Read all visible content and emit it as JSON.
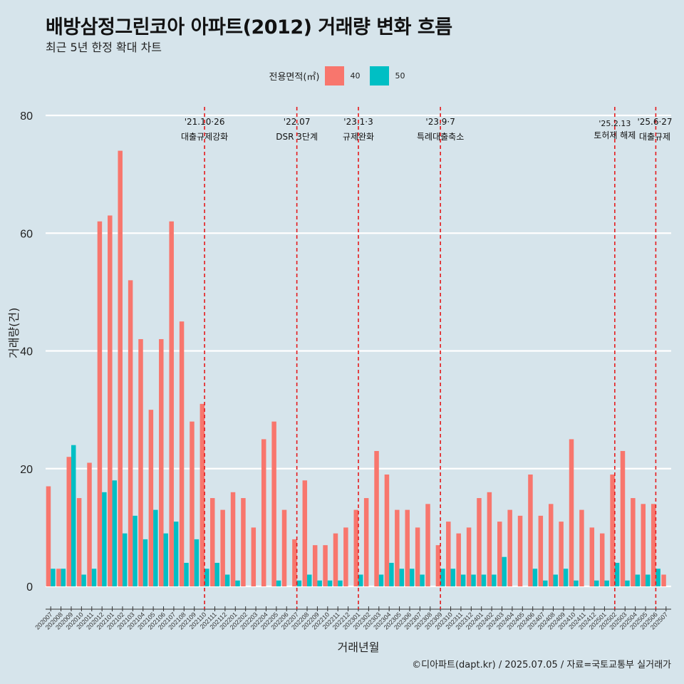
{
  "title": "배방삼정그린코아 아파트(2012) 거래량 변화 흐름",
  "subtitle": "최근 5년 한정 확대 차트",
  "caption": "©디아파트(dapt.kr) / 2025.07.05 / 자료=국토교통부 실거래가",
  "legend": {
    "title": "전용면적(㎡)",
    "items": [
      {
        "label": "40",
        "color": "#f8766d"
      },
      {
        "label": "50",
        "color": "#00bfc4"
      }
    ]
  },
  "chart_data": {
    "type": "bar",
    "title": "배방삼정그린코아 아파트(2012) 거래량 변화 흐름",
    "xlabel": "거래년월",
    "ylabel": "거래량(건)",
    "ylim": [
      0,
      80
    ],
    "yticks": [
      0,
      20,
      40,
      60,
      80
    ],
    "categories": [
      "202007",
      "202008",
      "202009",
      "202010",
      "202011",
      "202012",
      "202101",
      "202102",
      "202103",
      "202104",
      "202105",
      "202106",
      "202107",
      "202108",
      "202109",
      "202110",
      "202111",
      "202112",
      "202201",
      "202202",
      "202203",
      "202204",
      "202205",
      "202206",
      "202207",
      "202208",
      "202209",
      "202210",
      "202211",
      "202212",
      "202301",
      "202302",
      "202303",
      "202304",
      "202305",
      "202306",
      "202307",
      "202308",
      "202309",
      "202310",
      "202311",
      "202312",
      "202401",
      "202402",
      "202403",
      "202404",
      "202405",
      "202406",
      "202407",
      "202408",
      "202409",
      "202410",
      "202411",
      "202412",
      "202501",
      "202502",
      "202503",
      "202504",
      "202505",
      "202506",
      "202507"
    ],
    "series": [
      {
        "name": "40",
        "color": "#f8766d",
        "values": [
          17,
          3,
          22,
          15,
          21,
          62,
          63,
          74,
          52,
          42,
          30,
          42,
          62,
          45,
          28,
          31,
          15,
          13,
          16,
          15,
          10,
          25,
          28,
          13,
          8,
          18,
          7,
          7,
          9,
          10,
          13,
          15,
          23,
          19,
          13,
          13,
          10,
          14,
          7,
          11,
          9,
          10,
          15,
          16,
          11,
          13,
          12,
          19,
          12,
          14,
          11,
          25,
          13,
          10,
          9,
          19,
          23,
          15,
          14,
          14,
          2
        ]
      },
      {
        "name": "50",
        "color": "#00bfc4",
        "values": [
          3,
          3,
          24,
          2,
          3,
          16,
          18,
          9,
          12,
          8,
          13,
          9,
          11,
          4,
          8,
          3,
          4,
          2,
          1,
          null,
          null,
          null,
          1,
          null,
          1,
          2,
          1,
          1,
          1,
          null,
          2,
          null,
          2,
          4,
          3,
          3,
          2,
          null,
          3,
          3,
          2,
          2,
          2,
          2,
          5,
          null,
          null,
          3,
          1,
          2,
          3,
          1,
          null,
          1,
          1,
          4,
          1,
          2,
          2,
          3,
          null
        ]
      }
    ],
    "events": [
      {
        "date": "'21.10·26",
        "label": "대출규제강화",
        "at": "202110"
      },
      {
        "date": "'22.07",
        "label": "DSR 3단계",
        "at": "202207"
      },
      {
        "date": "'23.1·3",
        "label": "규제완화",
        "at": "202301"
      },
      {
        "date": "'23.9·7",
        "label": "특례대출축소",
        "at": "202309"
      },
      {
        "date": "'25.2.13",
        "label": "토허제 해제",
        "at": "202502"
      },
      {
        "date": "'25.6·27",
        "label": "대출규제",
        "at": "202506"
      }
    ]
  }
}
